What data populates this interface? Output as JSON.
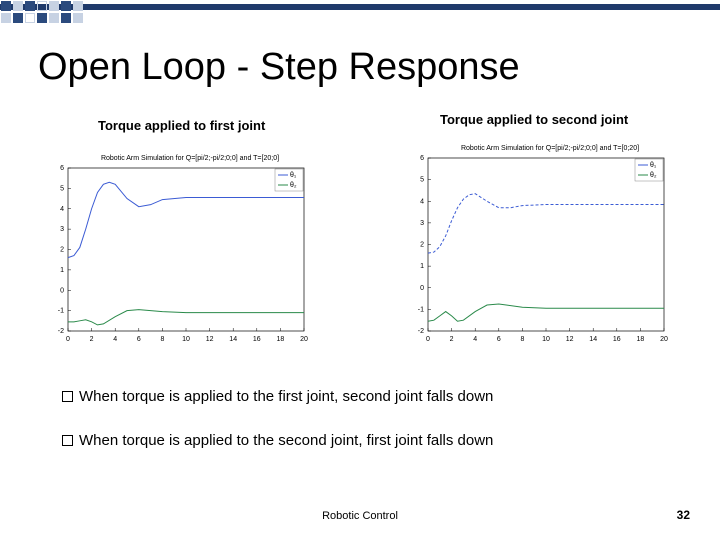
{
  "title": "Open Loop - Step Response",
  "subtitles": {
    "left": "Torque applied to first joint",
    "right": "Torque applied to second joint"
  },
  "chart_left": {
    "type": "line",
    "title": "Robotic Arm Simulation for Q=[pi/2;-pi/2;0;0] and T=[20;0]",
    "xlim": [
      0,
      20
    ],
    "ylim": [
      -2,
      6
    ],
    "xtick_step": 2,
    "ytick_step": 1,
    "background_color": "#ffffff",
    "axis_color": "#000000",
    "grid_color": "#e8e8e8",
    "legend": [
      {
        "label": "θ₁",
        "color": "#3b5bd4"
      },
      {
        "label": "θ₂",
        "color": "#2a8a4a"
      }
    ],
    "series": [
      {
        "name": "theta1",
        "color": "#3b5bd4",
        "line_width": 1,
        "x": [
          0,
          0.5,
          1,
          1.5,
          2,
          2.5,
          3,
          3.5,
          4,
          5,
          6,
          7,
          8,
          10,
          12,
          14,
          16,
          18,
          20
        ],
        "y": [
          1.6,
          1.7,
          2.1,
          3.0,
          4.0,
          4.8,
          5.2,
          5.3,
          5.2,
          4.5,
          4.1,
          4.2,
          4.45,
          4.55,
          4.55,
          4.55,
          4.55,
          4.55,
          4.55
        ]
      },
      {
        "name": "theta2",
        "color": "#2a8a4a",
        "line_width": 1,
        "x": [
          0,
          0.5,
          1,
          1.5,
          2,
          2.5,
          3,
          4,
          5,
          6,
          8,
          10,
          12,
          14,
          16,
          18,
          20
        ],
        "y": [
          -1.55,
          -1.55,
          -1.5,
          -1.45,
          -1.55,
          -1.7,
          -1.65,
          -1.3,
          -1.0,
          -0.95,
          -1.05,
          -1.1,
          -1.1,
          -1.1,
          -1.1,
          -1.1,
          -1.1
        ]
      }
    ]
  },
  "chart_right": {
    "type": "line",
    "title": "Robotic Arm Simulation for Q=[pi/2;-pi/2;0;0] and T=[0;20]",
    "xlim": [
      0,
      20
    ],
    "ylim": [
      -2,
      6
    ],
    "xtick_step": 2,
    "ytick_step": 1,
    "background_color": "#ffffff",
    "axis_color": "#000000",
    "grid_color": "#e8e8e8",
    "legend": [
      {
        "label": "θ₁",
        "color": "#3b5bd4"
      },
      {
        "label": "θ₂",
        "color": "#2a8a4a"
      }
    ],
    "series": [
      {
        "name": "theta1",
        "color": "#3b5bd4",
        "line_width": 1,
        "dash": "3,2",
        "x": [
          0,
          0.5,
          1,
          1.5,
          2,
          2.5,
          3,
          3.5,
          4,
          5,
          6,
          7,
          8,
          10,
          12,
          14,
          16,
          18,
          20
        ],
        "y": [
          1.6,
          1.65,
          1.9,
          2.4,
          3.1,
          3.7,
          4.1,
          4.3,
          4.35,
          4.0,
          3.7,
          3.7,
          3.8,
          3.85,
          3.85,
          3.85,
          3.85,
          3.85,
          3.85
        ]
      },
      {
        "name": "theta2",
        "color": "#2a8a4a",
        "line_width": 1,
        "x": [
          0,
          0.5,
          1,
          1.5,
          2,
          2.5,
          3,
          4,
          5,
          6,
          8,
          10,
          12,
          14,
          16,
          18,
          20
        ],
        "y": [
          -1.55,
          -1.5,
          -1.3,
          -1.1,
          -1.3,
          -1.55,
          -1.5,
          -1.1,
          -0.8,
          -0.75,
          -0.9,
          -0.95,
          -0.95,
          -0.95,
          -0.95,
          -0.95,
          -0.95
        ]
      }
    ]
  },
  "bullets": [
    "When torque is applied to the first joint, second joint falls down",
    "When torque is applied to the second joint, first joint falls down"
  ],
  "footer": {
    "center": "Robotic Control",
    "page": "32"
  },
  "accent_color": "#1f3a6b"
}
